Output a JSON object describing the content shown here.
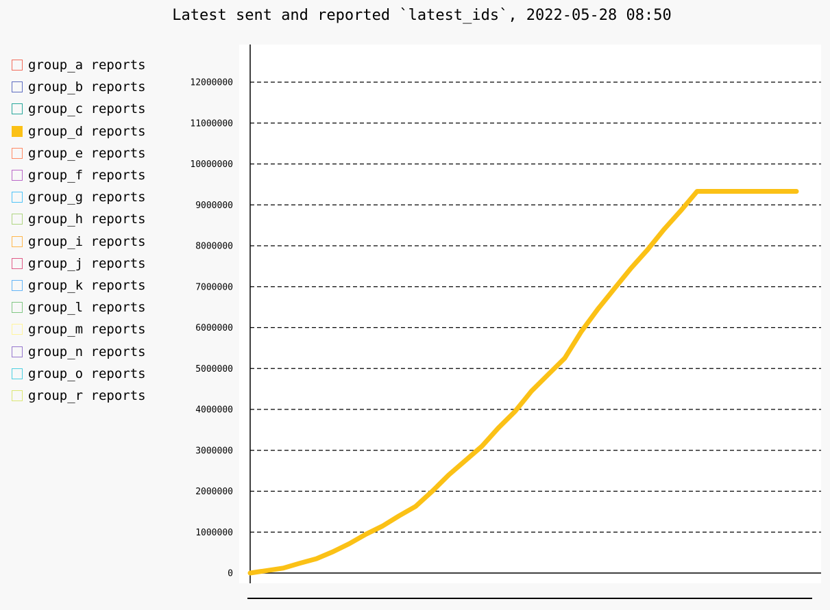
{
  "chart_data": {
    "type": "line",
    "title": "Latest sent and reported `latest_ids`, 2022-05-28 08:50",
    "xlabel": "",
    "ylabel": "",
    "ylim": [
      0,
      12900000
    ],
    "yticks": [
      {
        "value": 0,
        "label": "0"
      },
      {
        "value": 1000000,
        "label": "1000000"
      },
      {
        "value": 2000000,
        "label": "2000000"
      },
      {
        "value": 3000000,
        "label": "3000000"
      },
      {
        "value": 4000000,
        "label": "4000000"
      },
      {
        "value": 5000000,
        "label": "5000000"
      },
      {
        "value": 6000000,
        "label": "6000000"
      },
      {
        "value": 7000000,
        "label": "7000000"
      },
      {
        "value": 8000000,
        "label": "8000000"
      },
      {
        "value": 9000000,
        "label": "9000000"
      },
      {
        "value": 10000000,
        "label": "10000000"
      },
      {
        "value": 11000000,
        "label": "11000000"
      },
      {
        "value": 12000000,
        "label": "12000000"
      }
    ],
    "grid": "horizontal-dashed",
    "legend_placement": "left",
    "series": [
      {
        "name": "group_a reports",
        "color": "#f26b5b",
        "active": false,
        "values": []
      },
      {
        "name": "group_b reports",
        "color": "#5c6bc0",
        "active": false,
        "values": []
      },
      {
        "name": "group_c reports",
        "color": "#26a69a",
        "active": false,
        "values": []
      },
      {
        "name": "group_d reports",
        "color": "#fbc116",
        "active": true,
        "values": [
          [
            0,
            0
          ],
          [
            1,
            60000
          ],
          [
            2,
            120000
          ],
          [
            3,
            240000
          ],
          [
            4,
            350000
          ],
          [
            5,
            520000
          ],
          [
            6,
            720000
          ],
          [
            7,
            950000
          ],
          [
            8,
            1150000
          ],
          [
            9,
            1400000
          ],
          [
            10,
            1630000
          ],
          [
            11,
            2000000
          ],
          [
            12,
            2400000
          ],
          [
            13,
            2750000
          ],
          [
            14,
            3100000
          ],
          [
            15,
            3550000
          ],
          [
            16,
            3950000
          ],
          [
            17,
            4450000
          ],
          [
            18,
            4850000
          ],
          [
            19,
            5250000
          ],
          [
            20,
            5900000
          ],
          [
            21,
            6450000
          ],
          [
            22,
            6950000
          ],
          [
            23,
            7450000
          ],
          [
            24,
            7900000
          ],
          [
            25,
            8400000
          ],
          [
            26,
            8850000
          ],
          [
            27,
            9330000
          ],
          [
            28,
            9330000
          ],
          [
            29,
            9330000
          ],
          [
            30,
            9330000
          ],
          [
            31,
            9330000
          ],
          [
            32,
            9330000
          ],
          [
            33,
            9330000
          ]
        ]
      },
      {
        "name": "group_e reports",
        "color": "#ff8a65",
        "active": false,
        "values": []
      },
      {
        "name": "group_f reports",
        "color": "#ba68c8",
        "active": false,
        "values": []
      },
      {
        "name": "group_g reports",
        "color": "#4fc3f7",
        "active": false,
        "values": []
      },
      {
        "name": "group_h reports",
        "color": "#aed581",
        "active": false,
        "values": []
      },
      {
        "name": "group_i reports",
        "color": "#ffb74d",
        "active": false,
        "values": []
      },
      {
        "name": "group_j reports",
        "color": "#e05b87",
        "active": false,
        "values": []
      },
      {
        "name": "group_k reports",
        "color": "#64b5f6",
        "active": false,
        "values": []
      },
      {
        "name": "group_l reports",
        "color": "#81c784",
        "active": false,
        "values": []
      },
      {
        "name": "group_m reports",
        "color": "#fff59d",
        "active": false,
        "values": []
      },
      {
        "name": "group_n reports",
        "color": "#9575cd",
        "active": false,
        "values": []
      },
      {
        "name": "group_o reports",
        "color": "#4dd0e1",
        "active": false,
        "values": []
      },
      {
        "name": "group_r reports",
        "color": "#dce775",
        "active": false,
        "values": []
      }
    ]
  }
}
